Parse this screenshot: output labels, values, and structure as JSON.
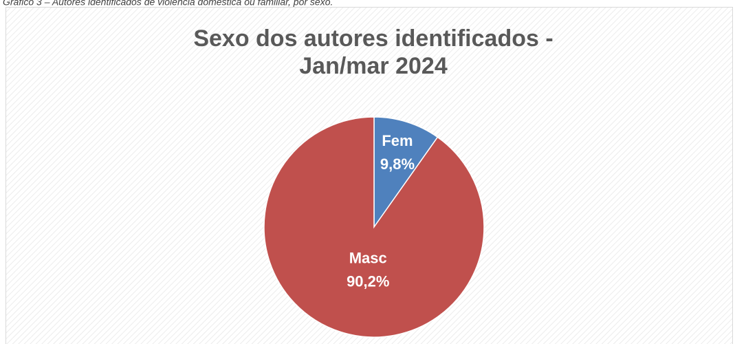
{
  "caption": "Gráfico 3 – Autores identificados de violência doméstica ou familiar, por sexo.",
  "chart_data": {
    "type": "pie",
    "title": "Sexo dos autores identificados - Jan/mar 2024",
    "categories": [
      "Fem",
      "Masc"
    ],
    "values": [
      9.8,
      90.2
    ],
    "value_labels": [
      "9,8%",
      "90,2%"
    ],
    "colors": [
      "#4f81bd",
      "#c0504d"
    ]
  }
}
